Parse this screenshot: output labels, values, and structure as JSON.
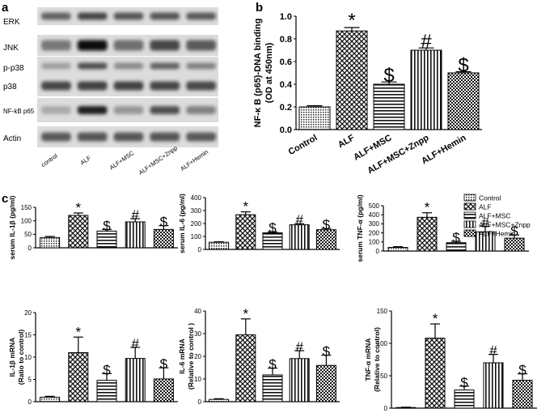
{
  "panels": {
    "a": {
      "letter": "a",
      "bands": [
        "ERK",
        "JNK",
        "p-p38",
        "p38",
        "NF-kB p65",
        "Actin"
      ],
      "lanes": [
        "control",
        "ALF",
        "ALF+MSC",
        "ALF+MSC+Znpp",
        "ALF+Hemin"
      ]
    },
    "b": {
      "letter": "b"
    },
    "c": {
      "letter": "c"
    }
  },
  "legend": {
    "items": [
      "Control",
      "ALF",
      "ALF+MSC",
      "ALF+MSC+Znpp",
      "ALF+Hemin"
    ]
  },
  "chart_data": [
    {
      "id": "b",
      "type": "bar",
      "categories": [
        "Control",
        "ALF",
        "ALF+MSC",
        "ALF+MSC+Znpp",
        "ALF+Hemin"
      ],
      "values": [
        0.2,
        0.87,
        0.4,
        0.7,
        0.5
      ],
      "errors": [
        0.01,
        0.03,
        0.02,
        0.02,
        0.01
      ],
      "marks": [
        "",
        "*",
        "$",
        "#",
        "$"
      ],
      "ylabel": [
        "NF-κ B (p65)-DNA binding",
        "(OD at 450nm)"
      ],
      "ylim": [
        0,
        1.0
      ],
      "yticks": [
        "0.0",
        "0.2",
        "0.4",
        "0.6",
        "0.8",
        "1.0"
      ]
    },
    {
      "id": "c1",
      "type": "bar",
      "categories": [
        "Control",
        "ALF",
        "ALF+MSC",
        "ALF+MSC+Znpp",
        "ALF+Hemin"
      ],
      "values": [
        38,
        120,
        62,
        96,
        68
      ],
      "errors": [
        4,
        9,
        6,
        12,
        14
      ],
      "marks": [
        "",
        "*",
        "$",
        "#",
        "$"
      ],
      "ylabel": [
        "serum IL-1β   (pg/ml)"
      ],
      "ylim": [
        0,
        150
      ],
      "yticks": [
        "0",
        "50",
        "100",
        "150"
      ]
    },
    {
      "id": "c2",
      "type": "bar",
      "categories": [
        "Control",
        "ALF",
        "ALF+MSC",
        "ALF+MSC+Znpp",
        "ALF+Hemin"
      ],
      "values": [
        55,
        268,
        128,
        190,
        152
      ],
      "errors": [
        4,
        22,
        8,
        9,
        10
      ],
      "marks": [
        "",
        "*",
        "$",
        "#",
        "$"
      ],
      "ylabel": [
        "serum IL-6 (pg/ml)"
      ],
      "ylim": [
        0,
        400
      ],
      "yticks": [
        "0",
        "100",
        "200",
        "300",
        "400"
      ]
    },
    {
      "id": "c3",
      "type": "bar",
      "categories": [
        "Control",
        "ALF",
        "ALF+MSC",
        "ALF+MSC+Znpp",
        "ALF+Hemin"
      ],
      "values": [
        40,
        372,
        92,
        212,
        142
      ],
      "errors": [
        8,
        50,
        15,
        60,
        35
      ],
      "marks": [
        "",
        "*",
        "$",
        "#",
        "$"
      ],
      "ylabel": [
        "serum TNF-α   (pg/ml)"
      ],
      "ylim": [
        0,
        500
      ],
      "yticks": [
        "0",
        "100",
        "200",
        "300",
        "400",
        "500"
      ]
    },
    {
      "id": "c4",
      "type": "bar",
      "categories": [
        "Control",
        "ALF",
        "ALF+MSC",
        "ALF+MSC+Znpp",
        "ALF+Hemin"
      ],
      "values": [
        1,
        11,
        4.8,
        9.7,
        5.1
      ],
      "errors": [
        0.2,
        3.5,
        1.5,
        2.5,
        2.5
      ],
      "marks": [
        "",
        "*",
        "$",
        "#",
        "$"
      ],
      "ylabel": [
        "IL-1β  mRNA",
        "(Ratio to control)"
      ],
      "ylim": [
        0,
        20
      ],
      "yticks": [
        "0",
        "5",
        "10",
        "15",
        "20"
      ]
    },
    {
      "id": "c5",
      "type": "bar",
      "categories": [
        "Control",
        "ALF",
        "ALF+MSC",
        "ALF+MSC+Znpp",
        "ALF+Hemin"
      ],
      "values": [
        1,
        29.5,
        11.8,
        19,
        16
      ],
      "errors": [
        0.3,
        7,
        3,
        3.5,
        4.5
      ],
      "marks": [
        "",
        "*",
        "$",
        "#",
        "$"
      ],
      "ylabel": [
        "IL-6 mRNA",
        "(Relative to control )"
      ],
      "ylim": [
        0,
        40
      ],
      "yticks": [
        "0",
        "10",
        "20",
        "30",
        "40"
      ]
    },
    {
      "id": "c6",
      "type": "bar",
      "categories": [
        "Control",
        "ALF",
        "ALF+MSC",
        "ALF+MSC+Znpp",
        "ALF+Hemin"
      ],
      "values": [
        1,
        108,
        28,
        70,
        43
      ],
      "errors": [
        0.5,
        22,
        6,
        13,
        10
      ],
      "marks": [
        "",
        "*",
        "$",
        "#",
        "$"
      ],
      "ylabel": [
        "TNF-α  mRNA",
        "(Relative to control)"
      ],
      "ylim": [
        0,
        150
      ],
      "yticks": [
        "0",
        "50",
        "100",
        "150"
      ]
    }
  ]
}
